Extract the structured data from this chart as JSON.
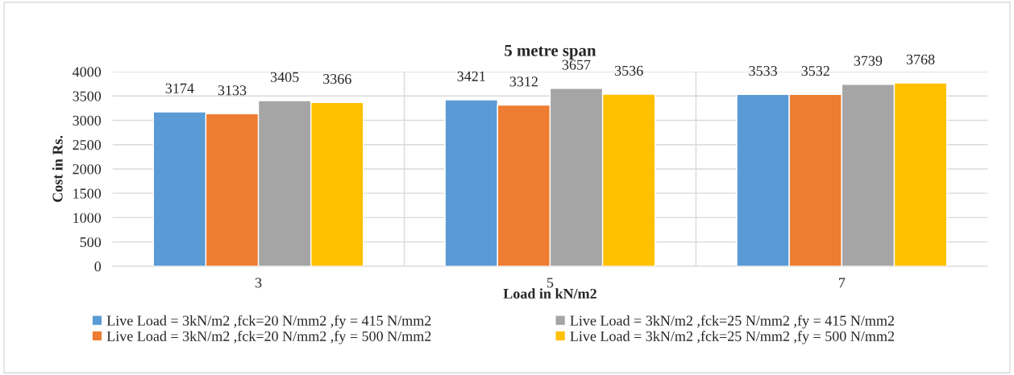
{
  "chart_data": {
    "type": "bar",
    "title": "5 metre span",
    "xlabel": "Load in kN/m2",
    "ylabel": "Cost in Rs.",
    "categories": [
      "3",
      "5",
      "7"
    ],
    "series": [
      {
        "name": "Live Load = 3kN/m2 ,fck=20 N/mm2 ,fy = 415 N/mm2",
        "color": "#5b9bd5",
        "values": [
          3174,
          3421,
          3533
        ]
      },
      {
        "name": "Live Load = 3kN/m2 ,fck=20 N/mm2 ,fy = 500 N/mm2",
        "color": "#ed7d31",
        "values": [
          3133,
          3312,
          3532
        ]
      },
      {
        "name": "Live Load = 3kN/m2 ,fck=25 N/mm2 ,fy = 415 N/mm2",
        "color": "#a5a5a5",
        "values": [
          3405,
          3657,
          3739
        ]
      },
      {
        "name": "Live Load = 3kN/m2 ,fck=25 N/mm2 ,fy = 500 N/mm2",
        "color": "#ffc000",
        "values": [
          3366,
          3536,
          3768
        ]
      }
    ],
    "ylim": [
      0,
      4000
    ],
    "yticks": [
      0,
      500,
      1000,
      1500,
      2000,
      2500,
      3000,
      3500,
      4000
    ],
    "grid": true,
    "data_labels": true,
    "legend": "bottom"
  }
}
